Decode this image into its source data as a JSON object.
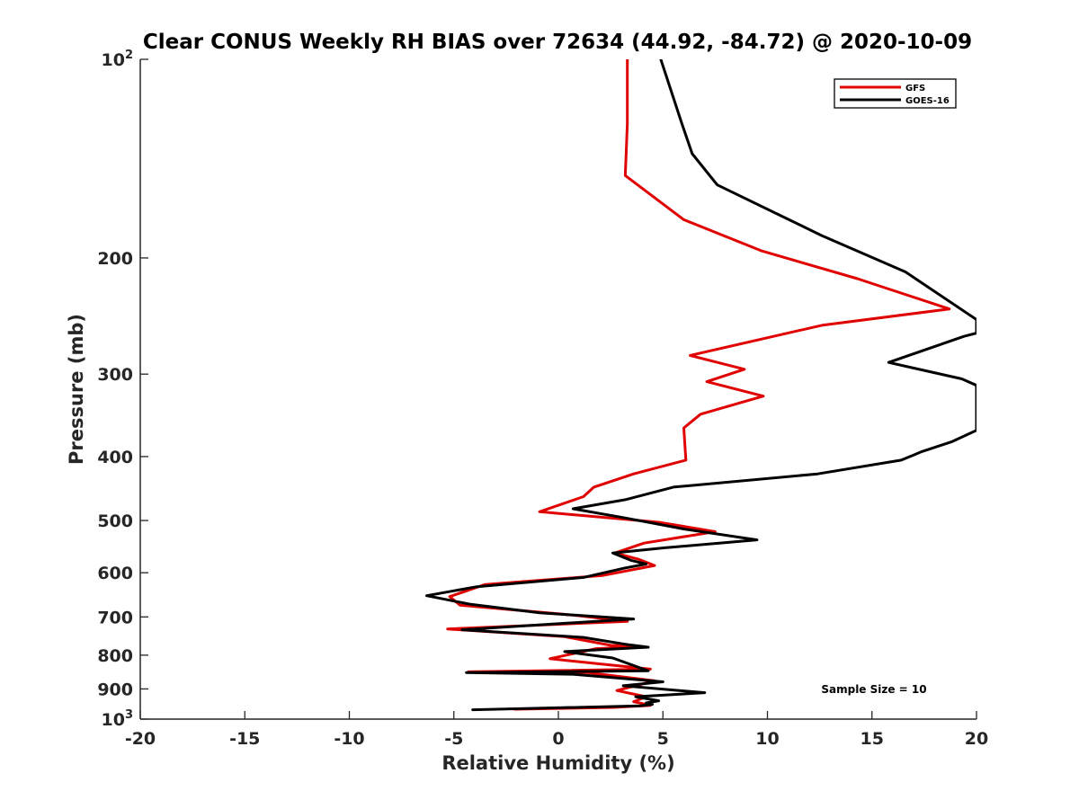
{
  "chart_data": {
    "type": "line",
    "title": "Clear CONUS Weekly RH BIAS over 72634 (44.92, -84.72) @ 2020-10-09",
    "xlabel": "Relative Humidity (%)",
    "ylabel": "Pressure (mb)",
    "xlim": [
      -20,
      20
    ],
    "ylim": [
      100,
      1000
    ],
    "yscale": "log",
    "y_reversed": true,
    "x_ticks": [
      -20,
      -15,
      -10,
      -5,
      0,
      5,
      10,
      15,
      20
    ],
    "x_tick_labels": [
      "-20",
      "-15",
      "-10",
      "-5",
      "0",
      "5",
      "10",
      "15",
      "20"
    ],
    "y_ticks": [
      100,
      200,
      300,
      400,
      500,
      600,
      700,
      800,
      900,
      1000
    ],
    "y_tick_labels": [
      {
        "base": "10",
        "sup": "2"
      },
      {
        "base": "200",
        "sup": ""
      },
      {
        "base": "300",
        "sup": ""
      },
      {
        "base": "400",
        "sup": ""
      },
      {
        "base": "500",
        "sup": ""
      },
      {
        "base": "600",
        "sup": ""
      },
      {
        "base": "700",
        "sup": ""
      },
      {
        "base": "800",
        "sup": ""
      },
      {
        "base": "900",
        "sup": ""
      },
      {
        "base": "10",
        "sup": "3"
      }
    ],
    "legend_position": "top-right",
    "annotation": "Sample Size = 10",
    "series": [
      {
        "name": "GFS",
        "color": "#e00000",
        "points": [
          [
            3.3,
            100
          ],
          [
            3.3,
            125
          ],
          [
            3.2,
            150
          ],
          [
            6.0,
            175
          ],
          [
            9.7,
            195
          ],
          [
            14.3,
            215
          ],
          [
            18.7,
            239
          ],
          [
            12.6,
            253
          ],
          [
            6.3,
            281
          ],
          [
            8.9,
            295
          ],
          [
            7.1,
            308
          ],
          [
            9.8,
            324
          ],
          [
            6.8,
            345
          ],
          [
            6.0,
            362
          ],
          [
            6.1,
            405
          ],
          [
            3.6,
            425
          ],
          [
            1.7,
            445
          ],
          [
            1.2,
            460
          ],
          [
            -0.9,
            485
          ],
          [
            4.8,
            503
          ],
          [
            7.5,
            520
          ],
          [
            4.1,
            541
          ],
          [
            2.7,
            560
          ],
          [
            3.8,
            572
          ],
          [
            4.6,
            585
          ],
          [
            2.1,
            606
          ],
          [
            -3.5,
            625
          ],
          [
            -5.2,
            652
          ],
          [
            -4.7,
            672
          ],
          [
            0.8,
            696
          ],
          [
            3.3,
            711
          ],
          [
            -5.3,
            730
          ],
          [
            0.3,
            750
          ],
          [
            2.5,
            773
          ],
          [
            4.0,
            776
          ],
          [
            1.8,
            782
          ],
          [
            -0.4,
            810
          ],
          [
            4.4,
            840
          ],
          [
            -4.3,
            848
          ],
          [
            1.4,
            850
          ],
          [
            4.6,
            875
          ],
          [
            2.8,
            905
          ],
          [
            4.2,
            925
          ],
          [
            3.6,
            941
          ],
          [
            4.4,
            953
          ],
          [
            2.6,
            960
          ],
          [
            -2.1,
            966
          ]
        ]
      },
      {
        "name": "GOES-16",
        "color": "#000000",
        "points": [
          [
            4.9,
            100
          ],
          [
            5.9,
            125
          ],
          [
            6.4,
            139
          ],
          [
            7.6,
            155
          ],
          [
            12.6,
            185
          ],
          [
            16.6,
            210
          ],
          [
            20.0,
            248
          ],
          [
            20.0,
            260
          ],
          [
            19.4,
            263
          ],
          [
            15.8,
            288
          ],
          [
            19.3,
            305
          ],
          [
            20.0,
            312
          ],
          [
            20.0,
            365
          ],
          [
            18.8,
            380
          ],
          [
            17.4,
            393
          ],
          [
            16.4,
            405
          ],
          [
            12.4,
            425
          ],
          [
            5.5,
            445
          ],
          [
            3.2,
            465
          ],
          [
            0.7,
            480
          ],
          [
            3.1,
            495
          ],
          [
            6.0,
            515
          ],
          [
            9.5,
            535
          ],
          [
            5.1,
            550
          ],
          [
            2.6,
            560
          ],
          [
            3.5,
            575
          ],
          [
            4.2,
            582
          ],
          [
            3.2,
            590
          ],
          [
            1.2,
            610
          ],
          [
            -3.9,
            630
          ],
          [
            -6.3,
            650
          ],
          [
            -4.2,
            670
          ],
          [
            -0.9,
            690
          ],
          [
            3.6,
            705
          ],
          [
            -4.6,
            732
          ],
          [
            1.2,
            752
          ],
          [
            3.2,
            770
          ],
          [
            4.3,
            778
          ],
          [
            0.3,
            790
          ],
          [
            2.6,
            808
          ],
          [
            4.3,
            845
          ],
          [
            -4.4,
            850
          ],
          [
            0.7,
            855
          ],
          [
            5.0,
            878
          ],
          [
            3.1,
            890
          ],
          [
            7.0,
            912
          ],
          [
            3.7,
            925
          ],
          [
            4.8,
            938
          ],
          [
            4.2,
            945
          ],
          [
            4.5,
            950
          ],
          [
            3.9,
            955
          ],
          [
            -4.1,
            968
          ]
        ]
      }
    ]
  }
}
